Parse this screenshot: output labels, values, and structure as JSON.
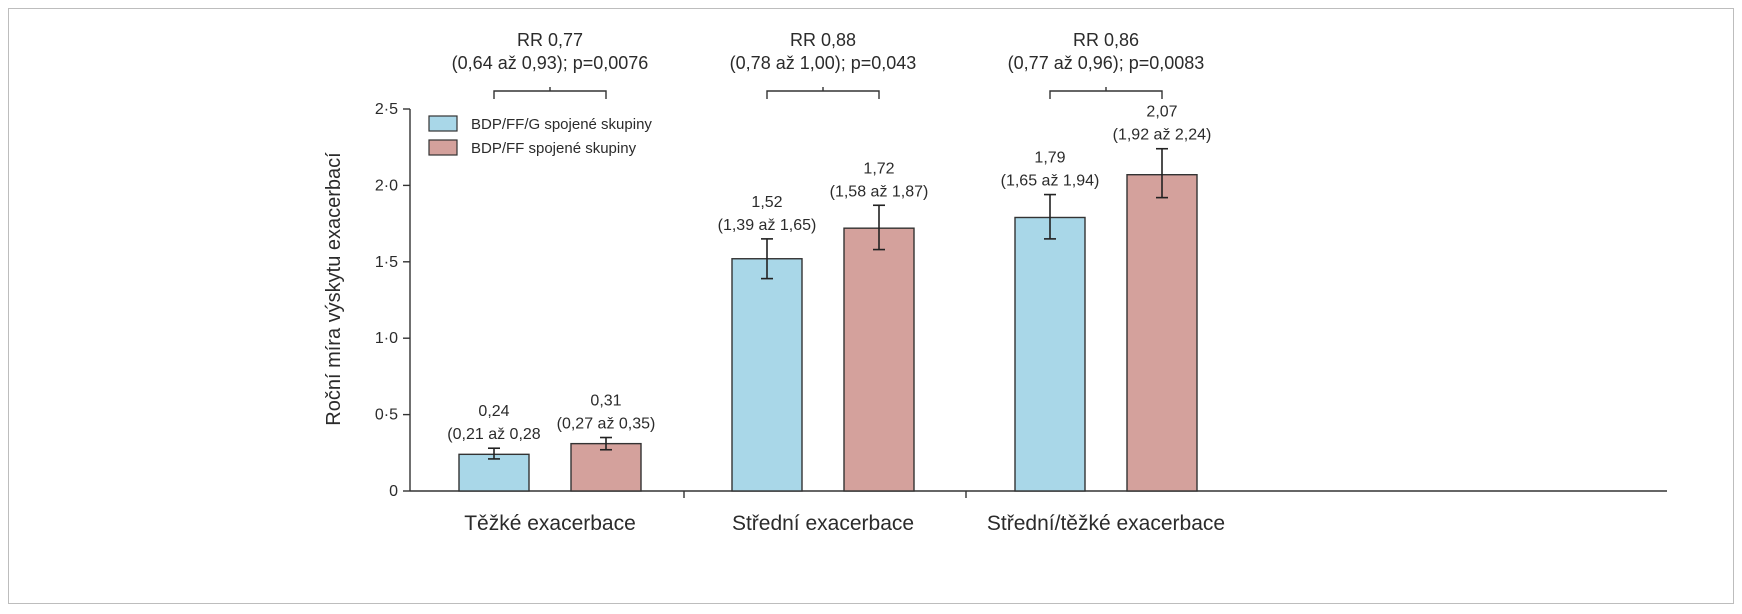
{
  "chart_data": {
    "type": "bar",
    "ylabel": "Roční míra výskytu exacerbací",
    "ylim": [
      0,
      2.5
    ],
    "yticks": [
      {
        "value": 0,
        "label": "0"
      },
      {
        "value": 0.5,
        "label": "0·5"
      },
      {
        "value": 1.0,
        "label": "1·0"
      },
      {
        "value": 1.5,
        "label": "1·5"
      },
      {
        "value": 2.0,
        "label": "2·0"
      },
      {
        "value": 2.5,
        "label": "2·5"
      }
    ],
    "categories": [
      "Těžké exacerbace",
      "Střední exacerbace",
      "Střední/těžké exacerbace"
    ],
    "series": [
      {
        "name": "BDP/FF/G spojené skupiny",
        "color": "#a9d7e8",
        "values": [
          0.24,
          1.52,
          1.79
        ],
        "ci_low": [
          0.21,
          1.39,
          1.65
        ],
        "ci_high": [
          0.28,
          1.65,
          1.94
        ],
        "value_labels": [
          "0,24",
          "1,52",
          "1,79"
        ],
        "ci_labels": [
          "(0,21 až 0,28",
          "(1,39 až 1,65)",
          "(1,65 až 1,94)"
        ]
      },
      {
        "name": "BDP/FF spojené skupiny",
        "color": "#d4a19c",
        "values": [
          0.31,
          1.72,
          2.07
        ],
        "ci_low": [
          0.27,
          1.58,
          1.92
        ],
        "ci_high": [
          0.35,
          1.87,
          2.24
        ],
        "value_labels": [
          "0,31",
          "1,72",
          "2,07"
        ],
        "ci_labels": [
          "(0,27 až 0,35)",
          "(1,58 až 1,87)",
          "(1,92 až 2,24)"
        ]
      }
    ],
    "comparisons": [
      {
        "rr": "RR 0,77",
        "detail": "(0,64 až 0,93); p=0,0076"
      },
      {
        "rr": "RR 0,88",
        "detail": "(0,78 až 1,00); p=0,043"
      },
      {
        "rr": "RR 0,86",
        "detail": "(0,77 až 0,96); p=0,0083"
      }
    ],
    "legend_position": "top-left",
    "grid": false
  }
}
